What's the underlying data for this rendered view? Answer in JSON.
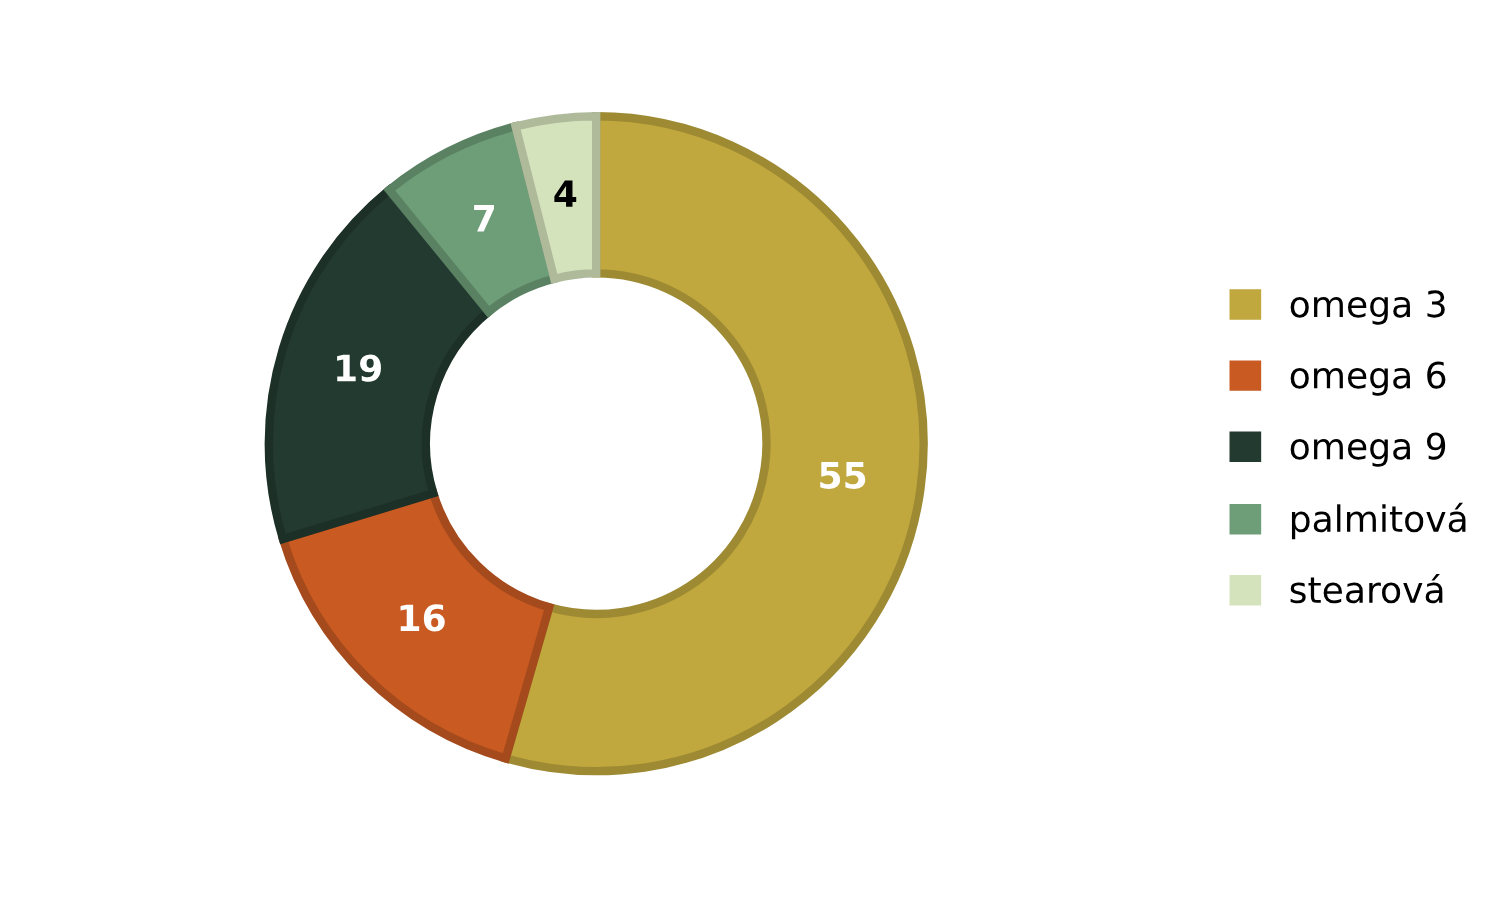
{
  "chart_data": {
    "type": "donut",
    "categories": [
      "omega 3",
      "omega 6",
      "omega 9",
      "palmitová",
      "stearová"
    ],
    "values": [
      55,
      16,
      19,
      7,
      4
    ],
    "colors": [
      "#c0a83e",
      "#c85a22",
      "#233a30",
      "#6e9e78",
      "#d5e3bd"
    ],
    "data_labels": true,
    "legend": "right"
  }
}
